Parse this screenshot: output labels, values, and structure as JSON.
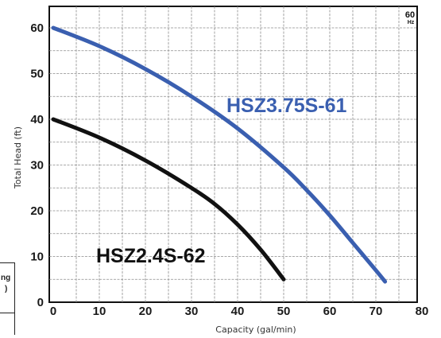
{
  "chart_data": {
    "type": "line",
    "xlabel": "Capacity (gal/min)",
    "ylabel": "Total Head (ft)",
    "xlim": [
      0,
      80
    ],
    "ylim": [
      0,
      65
    ],
    "x_ticks": [
      "0",
      "10",
      "20",
      "30",
      "40",
      "50",
      "60",
      "70",
      "80"
    ],
    "y_ticks": [
      "0",
      "10",
      "20",
      "30",
      "40",
      "50",
      "60"
    ],
    "grid": true,
    "frequency_badge": {
      "value": "60",
      "unit": "Hz"
    },
    "series": [
      {
        "name": "HSZ3.75S-61",
        "color": "#3a5fb0",
        "x": [
          0,
          10,
          20,
          30,
          40,
          50,
          55,
          60,
          65,
          70,
          72
        ],
        "y": [
          60,
          56,
          51,
          45,
          38,
          29.5,
          24.5,
          19,
          13,
          7,
          4.5
        ]
      },
      {
        "name": "HSZ2.4S-62",
        "color": "#111111",
        "x": [
          0,
          10,
          20,
          30,
          35,
          40,
          45,
          50
        ],
        "y": [
          40,
          36,
          31,
          25,
          21.5,
          17,
          11.5,
          5
        ]
      }
    ]
  },
  "side_table": {
    "row1": "ng",
    "row2": ")"
  }
}
